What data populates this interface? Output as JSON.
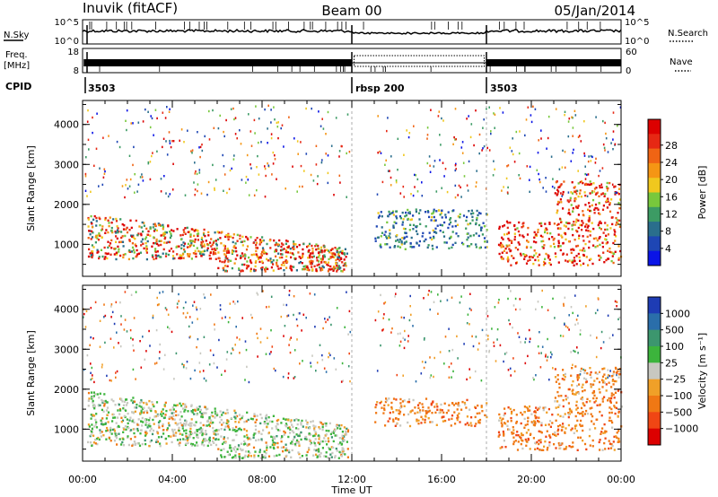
{
  "header": {
    "station": "Inuvik (fitACF)",
    "beam": "Beam 00",
    "date": "05/Jan/2014"
  },
  "top_panels": {
    "nsky_label": "N.Sky",
    "nsearch_label": "N.Search",
    "nsky_ticks": [
      "10^5",
      "10^0"
    ],
    "nsearch_ticks": [
      "10^5",
      "10^0"
    ],
    "freq_label_1": "Freq.",
    "freq_label_2": "[MHz]",
    "freq_ticks": [
      "18",
      "8"
    ],
    "nave_label": "Nave",
    "nave_ticks": [
      "60",
      "0"
    ],
    "cpid_label": "CPID",
    "cpid_segments": [
      {
        "label": "3503",
        "start": 0,
        "end": 12
      },
      {
        "label": "rbsp 200",
        "start": 12,
        "end": 18
      },
      {
        "label": "3503",
        "start": 18,
        "end": 24
      }
    ]
  },
  "chart_data": [
    {
      "type": "heatmap",
      "name": "power",
      "ylabel": "Slant Range [km]",
      "xlabel": "",
      "xlim": [
        0,
        24
      ],
      "ylim": [
        200,
        4600
      ],
      "yticks": [
        "1000",
        "2000",
        "3000",
        "4000"
      ],
      "colorbar": {
        "label": "Power [dB]",
        "ticks": [
          "4",
          "8",
          "12",
          "16",
          "20",
          "24",
          "28"
        ],
        "colors": [
          "#0a14e6",
          "#1e46b4",
          "#2a6e8c",
          "#3c9b64",
          "#78c83c",
          "#f0c81e",
          "#f59614",
          "#f06414",
          "#e62814",
          "#dc0000"
        ]
      },
      "regions": [
        {
          "t0": 0.2,
          "t1": 11.8,
          "r0": 350,
          "r1": 1800,
          "level": "high-mixed"
        },
        {
          "t0": 13.0,
          "t1": 18.0,
          "r0": 900,
          "r1": 1900,
          "level": "low-mid"
        },
        {
          "t0": 18.5,
          "t1": 24.0,
          "r0": 500,
          "r1": 1600,
          "level": "high"
        },
        {
          "t0": 21.0,
          "t1": 24.0,
          "r0": 1500,
          "r1": 2600,
          "level": "high"
        }
      ]
    },
    {
      "type": "heatmap",
      "name": "velocity",
      "ylabel": "Slant Range [km]",
      "xlabel": "Time UT",
      "xlim": [
        0,
        24
      ],
      "ylim": [
        200,
        4600
      ],
      "yticks": [
        "1000",
        "2000",
        "3000",
        "4000"
      ],
      "xticks": [
        "00:00",
        "04:00",
        "08:00",
        "12:00",
        "16:00",
        "20:00",
        "00:00"
      ],
      "colorbar": {
        "label": "Velocity [m s⁻¹]",
        "ticks": [
          "1000",
          "500",
          "100",
          "25",
          "−25",
          "−100",
          "−500",
          "−1000"
        ],
        "colors": [
          "#1e3cb4",
          "#2a6eaa",
          "#3c966e",
          "#3cb43c",
          "#c8c8c0",
          "#f0a028",
          "#f07814",
          "#f04614",
          "#dc0000"
        ]
      },
      "regions": [
        {
          "t0": 0.2,
          "t1": 11.8,
          "r0": 300,
          "r1": 2000,
          "level": "mixed"
        },
        {
          "t0": 13.0,
          "t1": 18.0,
          "r0": 1100,
          "r1": 1800,
          "level": "negative"
        },
        {
          "t0": 18.5,
          "t1": 24.0,
          "r0": 500,
          "r1": 1600,
          "level": "negative"
        },
        {
          "t0": 21.0,
          "t1": 24.0,
          "r0": 1600,
          "r1": 2600,
          "level": "negative"
        }
      ]
    }
  ]
}
